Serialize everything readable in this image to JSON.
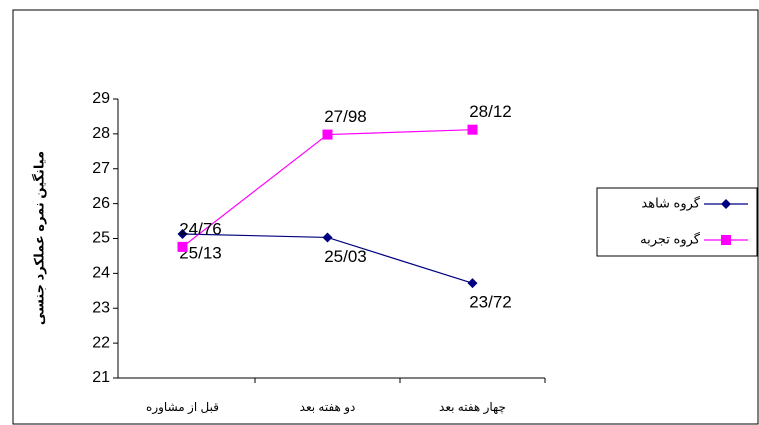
{
  "chart_data": {
    "type": "line",
    "y_label": "میانگین نمره عملکرد جنسی",
    "categories": [
      "قبل از مشاوره",
      "دو هفته بعد",
      "چهار هفته بعد"
    ],
    "series": [
      {
        "name": "گروه شاهد",
        "color": "#000080",
        "marker": "diamond",
        "values": [
          25.13,
          25.03,
          23.72
        ],
        "value_labels": [
          "25/13",
          "25/03",
          "23/72"
        ],
        "label_position": "below"
      },
      {
        "name": "گروه تجربه",
        "color": "#ff00ff",
        "marker": "square",
        "values": [
          24.76,
          27.98,
          28.12
        ],
        "value_labels": [
          "24/76",
          "27/98",
          "28/12"
        ],
        "label_position": "above"
      }
    ],
    "ylim": [
      21,
      29
    ],
    "yticks": [
      21,
      22,
      23,
      24,
      25,
      26,
      27,
      28,
      29
    ],
    "grid": false,
    "legend": "right"
  }
}
